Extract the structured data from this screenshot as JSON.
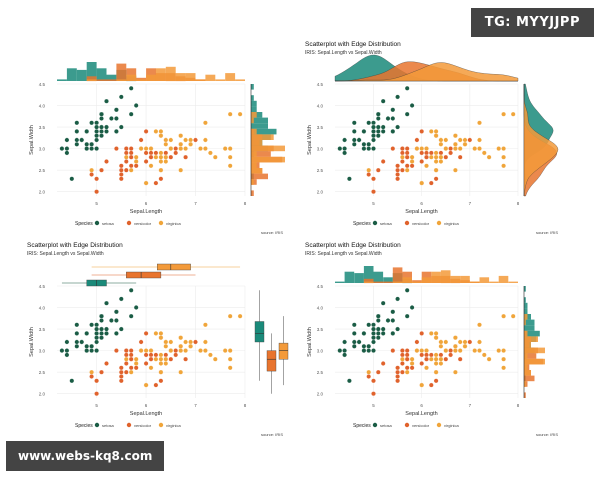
{
  "colors": {
    "setosa": "#1a5c45",
    "versicolor": "#e0622c",
    "virginica": "#f0a53a",
    "hist_setosa": "#1a8a7a",
    "hist_versicolor": "#e8742e",
    "hist_virginica": "#f39a3a"
  },
  "watermarks": {
    "top_right": "TG: MYYJJPP",
    "bottom_left": "www.webs-kq8.com"
  },
  "chart_data": [
    {
      "type": "scatter",
      "marginal": "histogram",
      "title": "",
      "subtitle": "",
      "xlabel": "Sepal.Length",
      "ylabel": "Sepal.Width",
      "xlim": [
        4.2,
        8.0
      ],
      "ylim": [
        1.9,
        4.5
      ],
      "xticks": [
        "5",
        "6",
        "7",
        "8"
      ],
      "yticks": [
        "2.0",
        "2.5",
        "3.0",
        "3.5",
        "4.0",
        "4.5"
      ],
      "legend_title": "Species",
      "legend": [
        "setosa",
        "versicolor",
        "virginica"
      ],
      "caption": "source: IRIS"
    },
    {
      "type": "scatter",
      "marginal": "density",
      "title": "Scatterplot with Edge Distribution",
      "subtitle": "IRIS: Sepal.Length vs Sepal.Width",
      "xlabel": "Sepal.Length",
      "ylabel": "Sepal.Width",
      "xlim": [
        4.2,
        8.0
      ],
      "ylim": [
        1.9,
        4.5
      ],
      "xticks": [
        "5",
        "6",
        "7",
        "8"
      ],
      "yticks": [
        "2.0",
        "2.5",
        "3.0",
        "3.5",
        "4.0",
        "4.5"
      ],
      "legend_title": "Species",
      "legend": [
        "setosa",
        "versicolor",
        "virginica"
      ],
      "caption": "source: IRIS"
    },
    {
      "type": "scatter",
      "marginal": "boxplot",
      "title": "Scatterplot with Edge Distribution",
      "subtitle": "IRIS: Sepal.Length vs Sepal.Width",
      "xlabel": "Sepal.Length",
      "ylabel": "Sepal.Width",
      "xlim": [
        4.2,
        8.0
      ],
      "ylim": [
        1.9,
        4.5
      ],
      "xticks": [
        "5",
        "6",
        "7",
        "8"
      ],
      "yticks": [
        "2.0",
        "2.5",
        "3.0",
        "3.5",
        "4.0",
        "4.5"
      ],
      "legend_title": "Species",
      "legend": [
        "setosa",
        "versicolor",
        "virginica"
      ],
      "caption": "source: IRIS"
    },
    {
      "type": "scatter",
      "marginal": "histogram",
      "title": "Scatterplot with Edge Distribution",
      "subtitle": "IRIS: Sepal.Length vs Sepal.Width",
      "xlabel": "Sepal.Length",
      "ylabel": "Sepal.Width",
      "xlim": [
        4.2,
        8.0
      ],
      "ylim": [
        1.9,
        4.5
      ],
      "xticks": [
        "5",
        "6",
        "7",
        "8"
      ],
      "yticks": [
        "2.0",
        "2.5",
        "3.0",
        "3.5",
        "4.0",
        "4.5"
      ],
      "legend_title": "Species",
      "legend": [
        "setosa",
        "versicolor",
        "virginica"
      ],
      "caption": "source: IRIS"
    }
  ],
  "points": {
    "setosa": [
      [
        5.1,
        3.5
      ],
      [
        4.9,
        3.0
      ],
      [
        4.7,
        3.2
      ],
      [
        4.6,
        3.1
      ],
      [
        5.0,
        3.6
      ],
      [
        5.4,
        3.9
      ],
      [
        4.6,
        3.4
      ],
      [
        5.0,
        3.4
      ],
      [
        4.4,
        2.9
      ],
      [
        4.9,
        3.1
      ],
      [
        5.4,
        3.7
      ],
      [
        4.8,
        3.4
      ],
      [
        4.8,
        3.0
      ],
      [
        4.3,
        3.0
      ],
      [
        5.8,
        4.0
      ],
      [
        5.7,
        4.4
      ],
      [
        5.4,
        3.9
      ],
      [
        5.1,
        3.5
      ],
      [
        5.7,
        3.8
      ],
      [
        5.1,
        3.8
      ],
      [
        5.4,
        3.4
      ],
      [
        5.1,
        3.7
      ],
      [
        4.6,
        3.6
      ],
      [
        5.1,
        3.3
      ],
      [
        4.8,
        3.4
      ],
      [
        5.0,
        3.0
      ],
      [
        5.0,
        3.4
      ],
      [
        5.2,
        3.5
      ],
      [
        5.2,
        3.4
      ],
      [
        4.7,
        3.2
      ],
      [
        4.8,
        3.1
      ],
      [
        5.4,
        3.4
      ],
      [
        5.2,
        4.1
      ],
      [
        5.5,
        4.2
      ],
      [
        4.9,
        3.1
      ],
      [
        5.0,
        3.2
      ],
      [
        5.5,
        3.5
      ],
      [
        4.9,
        3.6
      ],
      [
        4.4,
        3.0
      ],
      [
        5.1,
        3.4
      ],
      [
        5.0,
        3.5
      ],
      [
        4.5,
        2.3
      ],
      [
        4.4,
        3.2
      ],
      [
        5.0,
        3.5
      ],
      [
        5.1,
        3.8
      ],
      [
        4.8,
        3.0
      ],
      [
        5.1,
        3.8
      ],
      [
        4.6,
        3.2
      ],
      [
        5.3,
        3.7
      ],
      [
        5.0,
        3.3
      ]
    ],
    "versicolor": [
      [
        7.0,
        3.2
      ],
      [
        6.4,
        3.2
      ],
      [
        6.9,
        3.1
      ],
      [
        5.5,
        2.3
      ],
      [
        6.5,
        2.8
      ],
      [
        5.7,
        2.8
      ],
      [
        6.3,
        3.3
      ],
      [
        4.9,
        2.4
      ],
      [
        6.6,
        2.9
      ],
      [
        5.2,
        2.7
      ],
      [
        5.0,
        2.0
      ],
      [
        5.9,
        3.0
      ],
      [
        6.0,
        2.2
      ],
      [
        6.1,
        2.9
      ],
      [
        5.6,
        2.9
      ],
      [
        6.7,
        3.1
      ],
      [
        5.6,
        3.0
      ],
      [
        5.8,
        2.7
      ],
      [
        6.2,
        2.2
      ],
      [
        5.6,
        2.5
      ],
      [
        5.9,
        3.2
      ],
      [
        6.1,
        2.8
      ],
      [
        6.3,
        2.5
      ],
      [
        6.1,
        2.8
      ],
      [
        6.4,
        2.9
      ],
      [
        6.6,
        3.0
      ],
      [
        6.8,
        2.8
      ],
      [
        6.7,
        3.0
      ],
      [
        6.0,
        2.9
      ],
      [
        5.7,
        2.6
      ],
      [
        5.5,
        2.4
      ],
      [
        5.5,
        2.4
      ],
      [
        5.8,
        2.7
      ],
      [
        6.0,
        2.7
      ],
      [
        5.4,
        3.0
      ],
      [
        6.0,
        3.4
      ],
      [
        6.7,
        3.1
      ],
      [
        6.3,
        2.3
      ],
      [
        5.6,
        3.0
      ],
      [
        5.5,
        2.5
      ],
      [
        5.5,
        2.6
      ],
      [
        6.1,
        3.0
      ],
      [
        5.8,
        2.6
      ],
      [
        5.0,
        2.3
      ],
      [
        5.6,
        2.7
      ],
      [
        5.7,
        3.0
      ],
      [
        5.7,
        2.9
      ],
      [
        6.2,
        2.9
      ],
      [
        5.1,
        2.5
      ],
      [
        5.7,
        2.8
      ]
    ],
    "virginica": [
      [
        6.3,
        3.3
      ],
      [
        5.8,
        2.7
      ],
      [
        7.1,
        3.0
      ],
      [
        6.3,
        2.9
      ],
      [
        6.5,
        3.0
      ],
      [
        7.6,
        3.0
      ],
      [
        4.9,
        2.5
      ],
      [
        7.3,
        2.9
      ],
      [
        6.7,
        2.5
      ],
      [
        7.2,
        3.6
      ],
      [
        6.5,
        3.2
      ],
      [
        6.4,
        2.7
      ],
      [
        6.8,
        3.0
      ],
      [
        5.7,
        2.5
      ],
      [
        5.8,
        2.8
      ],
      [
        6.4,
        3.2
      ],
      [
        6.5,
        3.0
      ],
      [
        7.7,
        3.8
      ],
      [
        7.7,
        2.6
      ],
      [
        6.0,
        2.2
      ],
      [
        6.9,
        3.2
      ],
      [
        5.6,
        2.8
      ],
      [
        7.7,
        2.8
      ],
      [
        6.3,
        2.7
      ],
      [
        6.7,
        3.3
      ],
      [
        7.2,
        3.2
      ],
      [
        6.2,
        2.8
      ],
      [
        6.1,
        3.0
      ],
      [
        6.4,
        2.8
      ],
      [
        7.2,
        3.0
      ],
      [
        7.4,
        2.8
      ],
      [
        7.9,
        3.8
      ],
      [
        6.4,
        2.8
      ],
      [
        6.3,
        2.8
      ],
      [
        6.1,
        2.6
      ],
      [
        7.7,
        3.0
      ],
      [
        6.3,
        3.4
      ],
      [
        6.4,
        3.1
      ],
      [
        6.0,
        3.0
      ],
      [
        6.9,
        3.1
      ],
      [
        6.7,
        3.1
      ],
      [
        6.9,
        3.1
      ],
      [
        5.8,
        2.7
      ],
      [
        6.8,
        3.2
      ],
      [
        6.7,
        3.3
      ],
      [
        6.7,
        3.0
      ],
      [
        6.3,
        2.5
      ],
      [
        6.5,
        3.0
      ],
      [
        6.2,
        3.4
      ],
      [
        5.9,
        3.0
      ]
    ]
  }
}
